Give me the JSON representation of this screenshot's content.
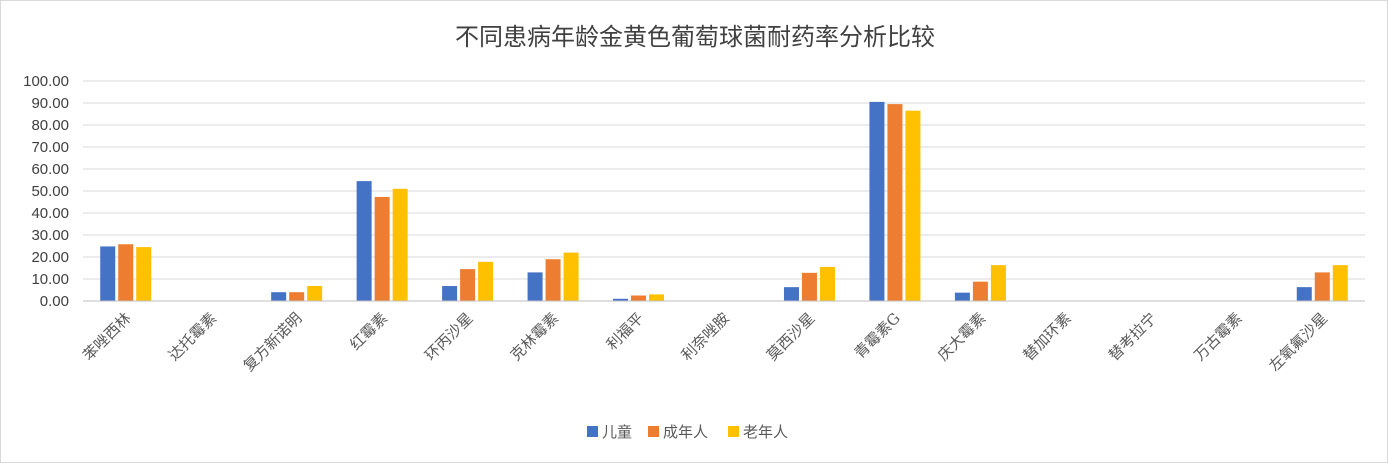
{
  "chart_data": {
    "type": "bar",
    "title": "不同患病年龄金黄色葡萄球菌耐药率分析比较",
    "xlabel": "",
    "ylabel": "",
    "ylim": [
      0,
      100
    ],
    "yticks": [
      "0.00",
      "10.00",
      "20.00",
      "30.00",
      "40.00",
      "50.00",
      "60.00",
      "70.00",
      "80.00",
      "90.00",
      "100.00"
    ],
    "grid": true,
    "legend_position": "bottom",
    "categories": [
      "苯唑西林",
      "达托霉素",
      "复方新诺明",
      "红霉素",
      "环丙沙星",
      "克林霉素",
      "利福平",
      "利奈唑胺",
      "莫西沙星",
      "青霉素G",
      "庆大霉素",
      "替加环素",
      "替考拉宁",
      "万古霉素",
      "左氧氟沙星"
    ],
    "series": [
      {
        "name": "儿童",
        "color": "#4472C4",
        "values": [
          24.8,
          0,
          4.0,
          54.5,
          6.8,
          13.0,
          1.0,
          0,
          6.3,
          90.5,
          3.8,
          0,
          0,
          0,
          6.3
        ]
      },
      {
        "name": "成年人",
        "color": "#ED7D31",
        "values": [
          25.8,
          0,
          4.0,
          47.3,
          14.5,
          19.0,
          2.5,
          0,
          12.8,
          89.5,
          8.8,
          0,
          0,
          0,
          13.0
        ]
      },
      {
        "name": "老年人",
        "color": "#FFC000",
        "values": [
          24.5,
          0,
          6.8,
          51.0,
          17.8,
          22.0,
          3.0,
          0,
          15.5,
          86.5,
          16.3,
          0,
          0,
          0,
          16.3
        ]
      }
    ]
  }
}
